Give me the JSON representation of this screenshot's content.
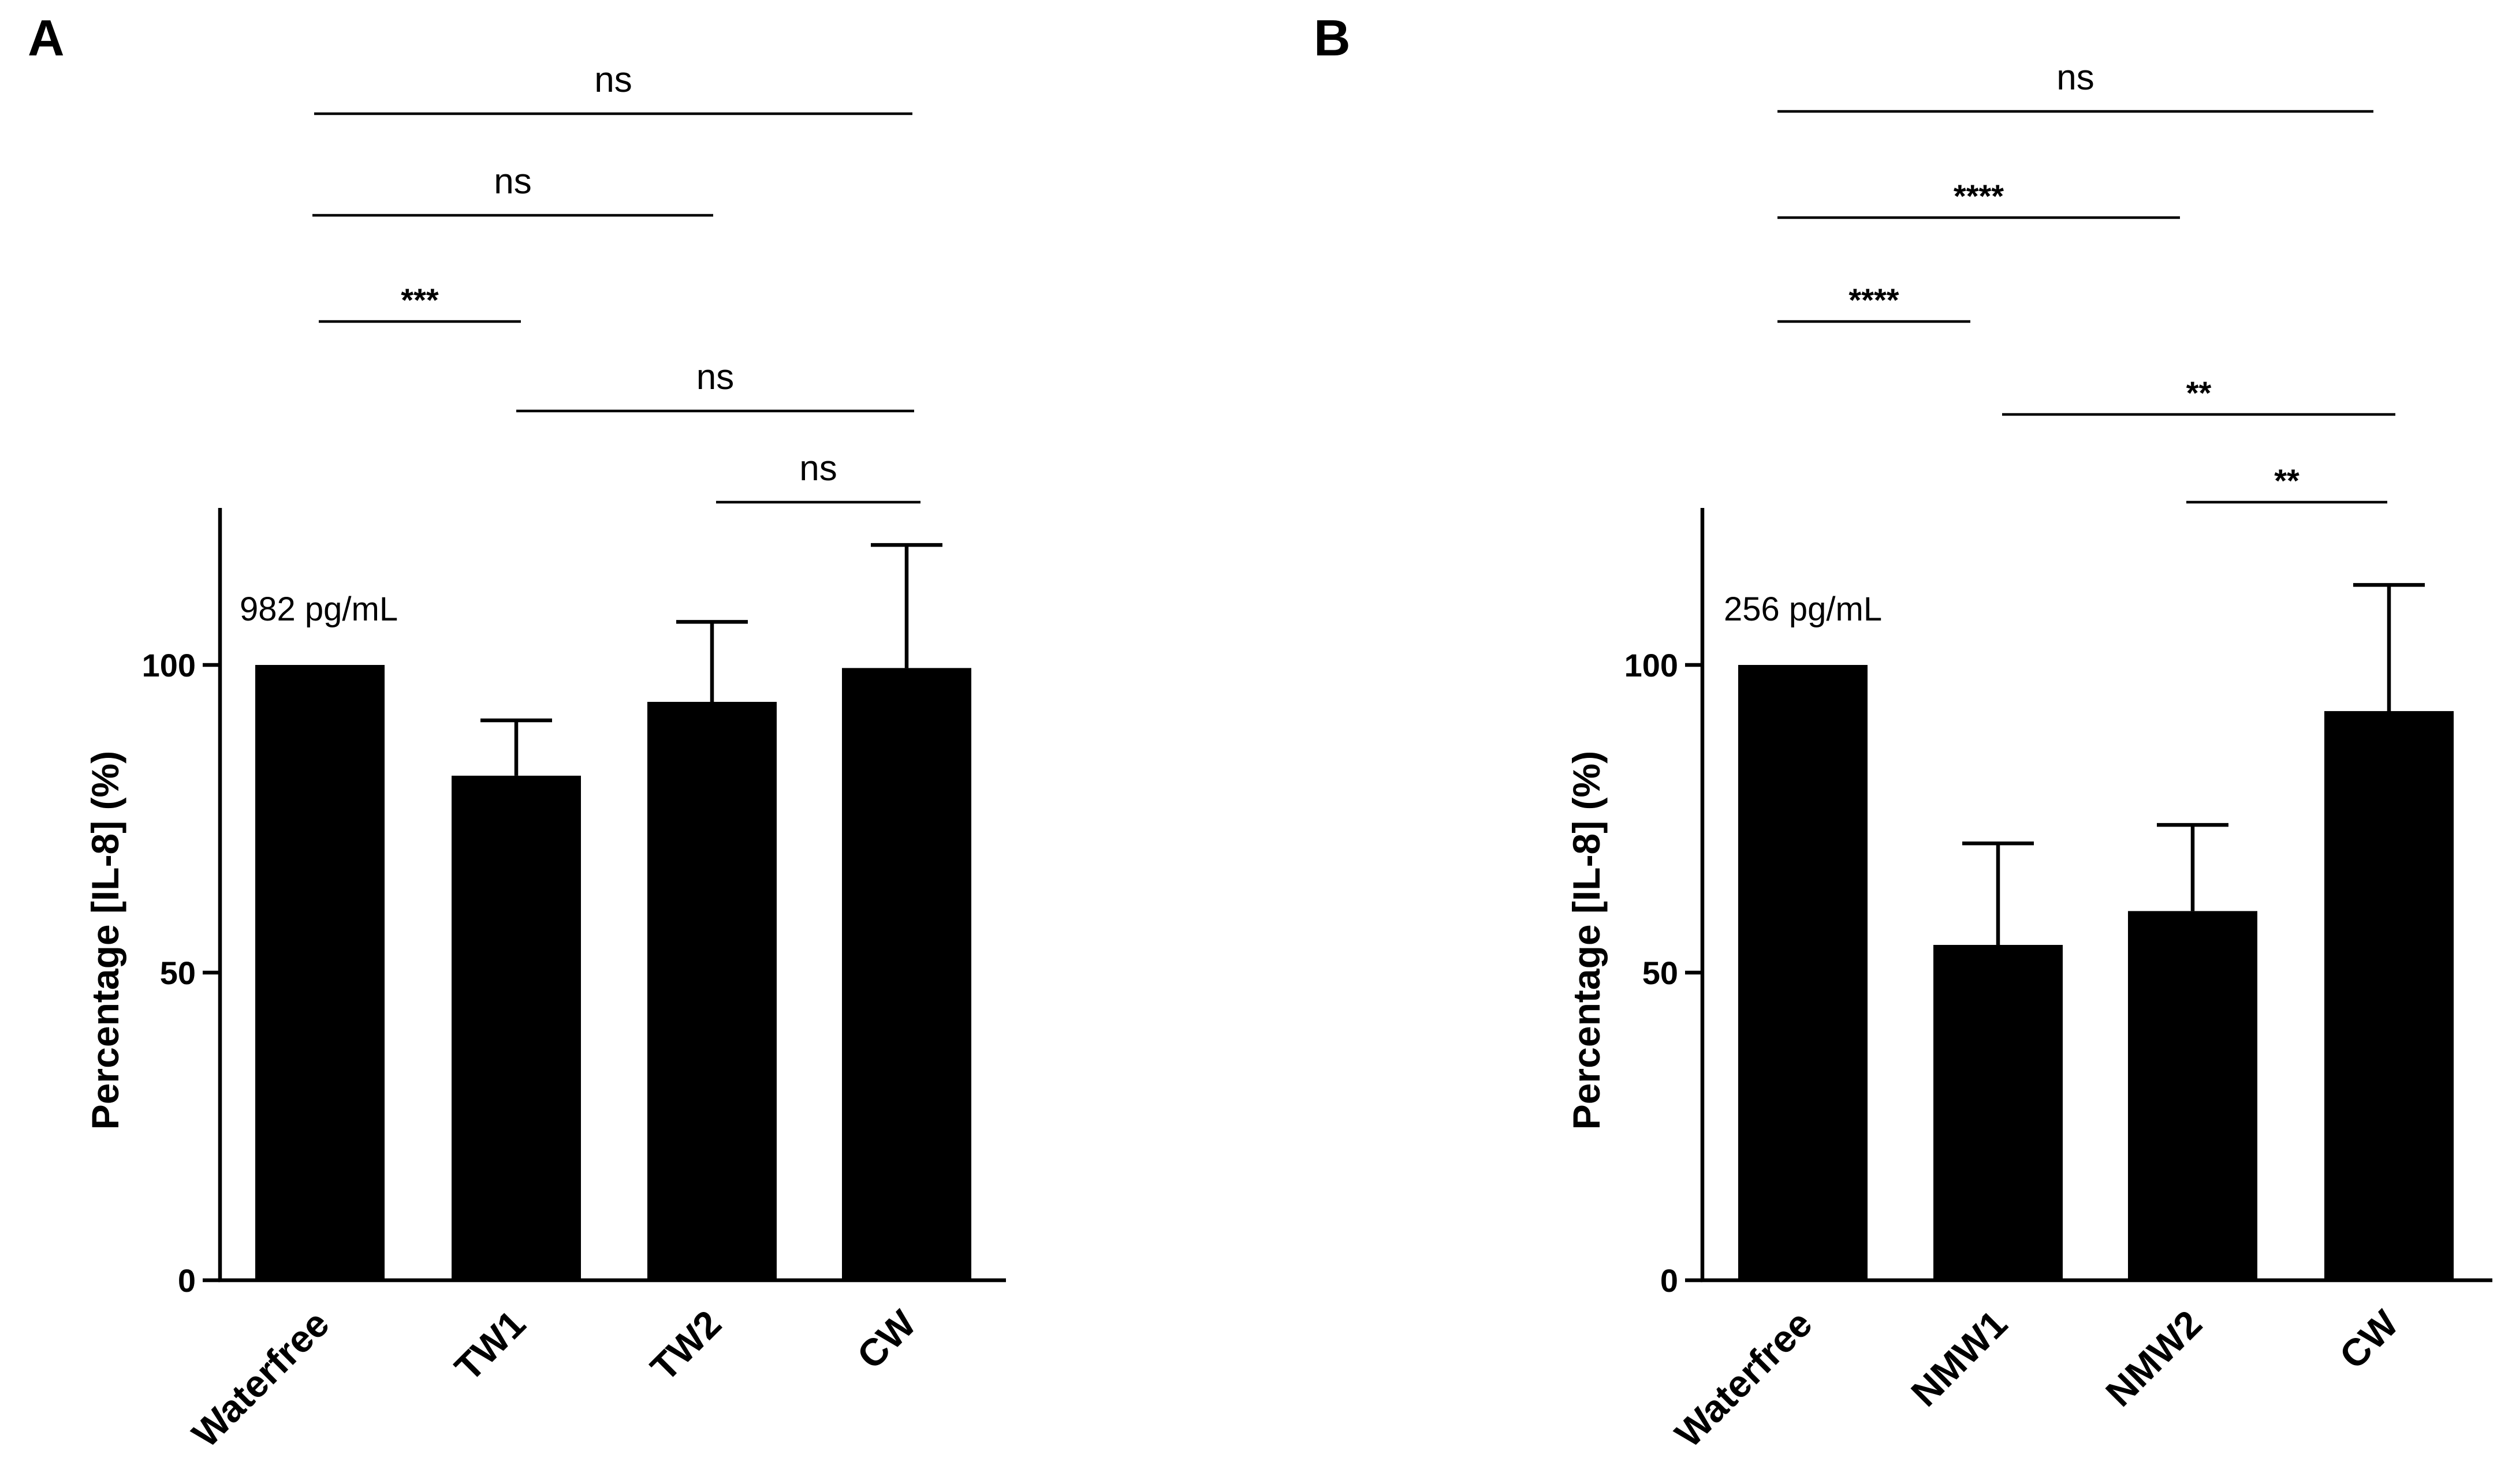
{
  "chart_data": [
    {
      "type": "bar",
      "panel_label": "A",
      "categories": [
        "Waterfree",
        "TW1",
        "TW2",
        "CW"
      ],
      "values": [
        100,
        82,
        94,
        99.5
      ],
      "errors": [
        0,
        9,
        13,
        20
      ],
      "ylabel": "Percentage [IL-8] (%)",
      "xlabel": "",
      "ylim": [
        0,
        125
      ],
      "yticks": [
        0,
        50,
        100
      ],
      "annotation": "982 pg/mL",
      "significance": [
        {
          "from": 0,
          "to": 3,
          "label": "ns"
        },
        {
          "from": 0,
          "to": 2,
          "label": "ns"
        },
        {
          "from": 0,
          "to": 1,
          "label": "***"
        },
        {
          "from": 1,
          "to": 3,
          "label": "ns"
        },
        {
          "from": 2,
          "to": 3,
          "label": "ns"
        }
      ]
    },
    {
      "type": "bar",
      "panel_label": "B",
      "categories": [
        "Waterfree",
        "NMW1",
        "NMW2",
        "CW"
      ],
      "values": [
        100,
        54.5,
        60,
        92.5
      ],
      "errors": [
        0,
        16.5,
        14,
        20.5
      ],
      "ylabel": "Percentage [IL-8] (%)",
      "xlabel": "",
      "ylim": [
        0,
        125
      ],
      "yticks": [
        0,
        50,
        100
      ],
      "annotation": "256 pg/mL",
      "significance": [
        {
          "from": 0,
          "to": 3,
          "label": "ns"
        },
        {
          "from": 0,
          "to": 2,
          "label": "****"
        },
        {
          "from": 0,
          "to": 1,
          "label": "****"
        },
        {
          "from": 1,
          "to": 3,
          "label": "**"
        },
        {
          "from": 2,
          "to": 3,
          "label": "**"
        }
      ]
    }
  ]
}
